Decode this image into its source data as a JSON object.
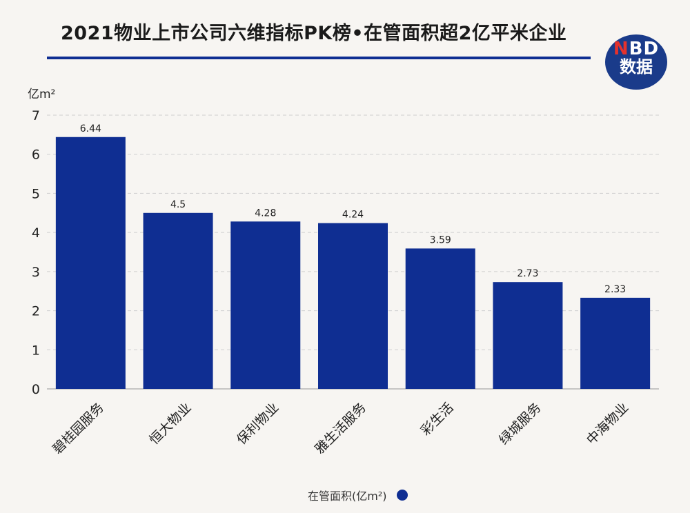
{
  "title": "2021物业上市公司六维指标PK榜•在管面积超2亿平米企业",
  "logo": {
    "brand_n": "N",
    "brand_rest": "BD",
    "sub": "数据"
  },
  "colors": {
    "bar": "#0f2e92",
    "rule": "#0f2e92",
    "logo_bg": "#1a3b8a",
    "logo_accent": "#e5322d"
  },
  "chart_data": {
    "type": "bar",
    "title": "2021物业上市公司六维指标PK榜•在管面积超2亿平米企业",
    "ylabel": "亿m²",
    "xlabel": "",
    "ylim": [
      0,
      7
    ],
    "yticks": [
      0,
      1,
      2,
      3,
      4,
      5,
      6,
      7
    ],
    "grid": true,
    "legend_position": "bottom",
    "categories": [
      "碧桂园服务",
      "恒大物业",
      "保利物业",
      "雅生活服务",
      "彩生活",
      "绿城服务",
      "中海物业"
    ],
    "series": [
      {
        "name": "在管面积(亿m²)",
        "values": [
          6.44,
          4.5,
          4.28,
          4.24,
          3.59,
          2.73,
          2.33
        ]
      }
    ],
    "data_labels": [
      "6.44",
      "4.5",
      "4.28",
      "4.24",
      "3.59",
      "2.73",
      "2.33"
    ]
  }
}
